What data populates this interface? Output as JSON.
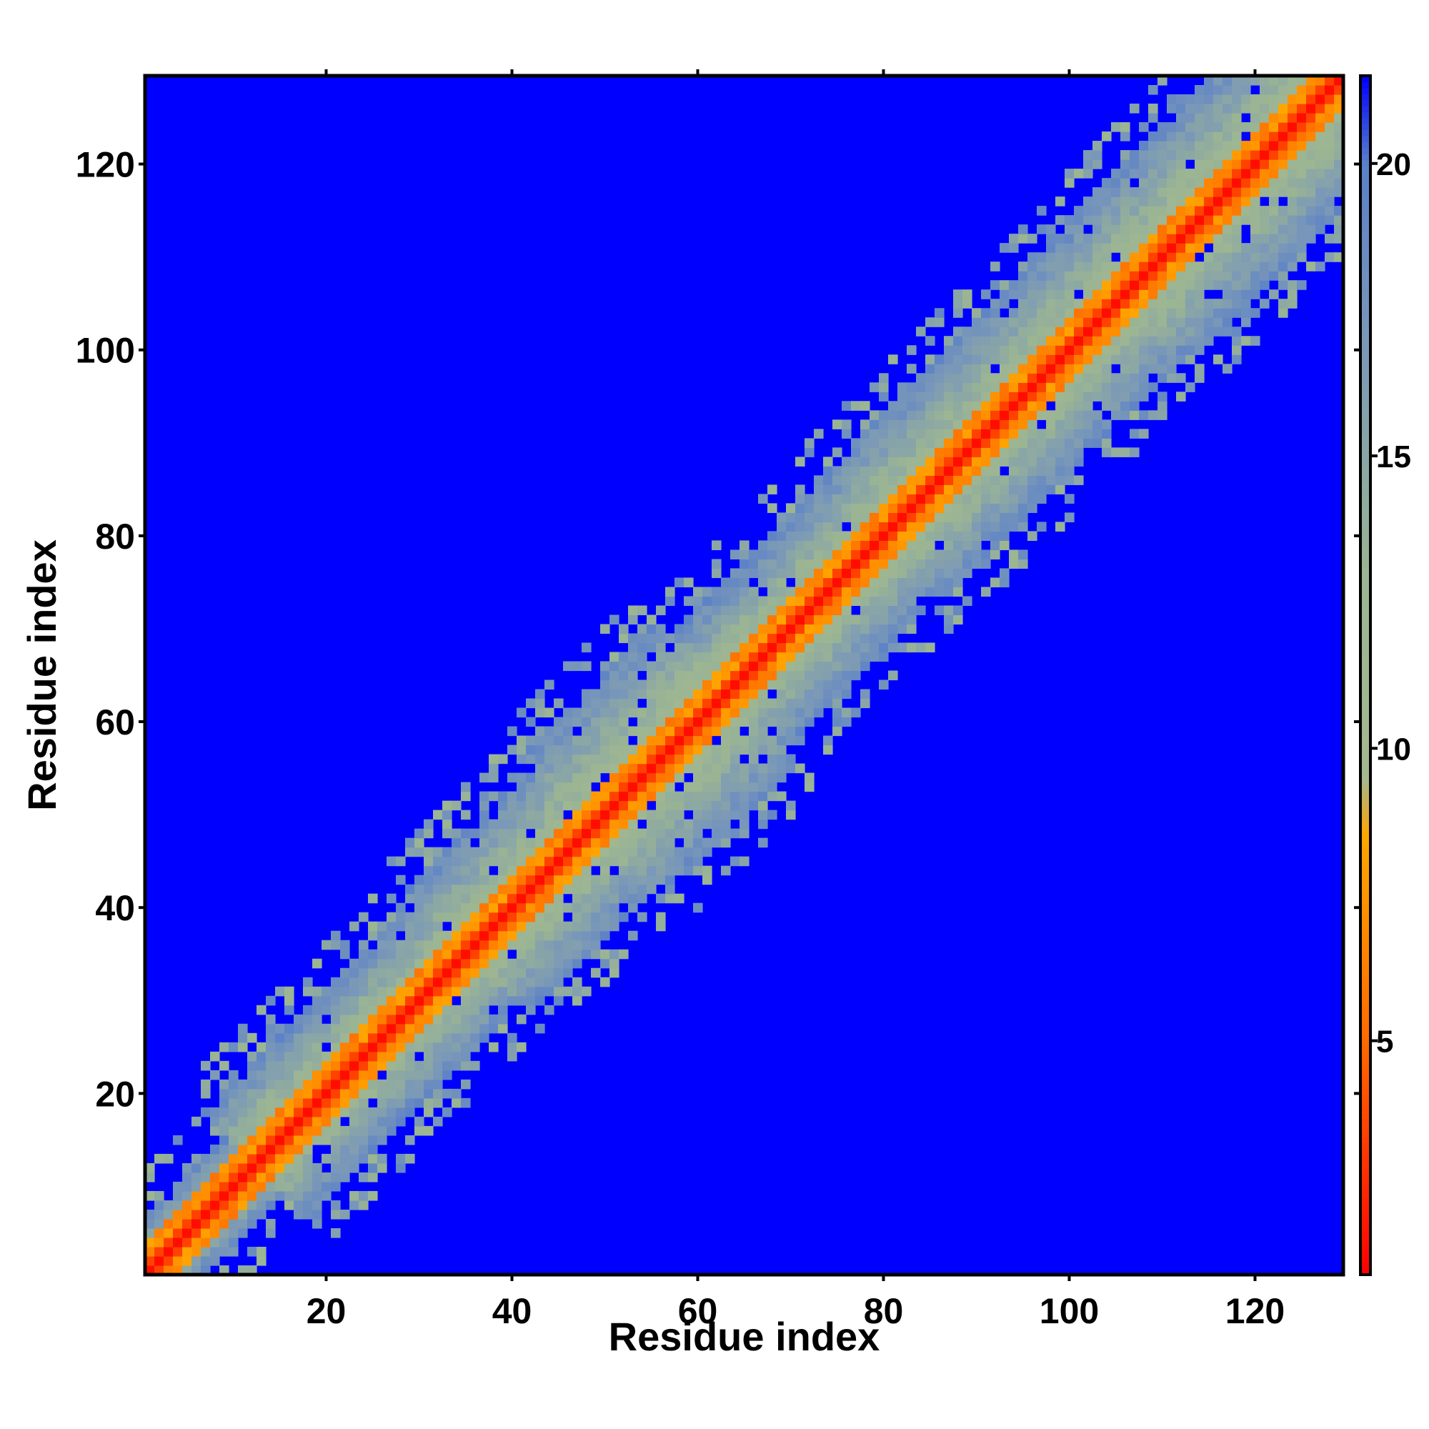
{
  "chart_data": {
    "type": "heatmap",
    "title": "",
    "xlabel": "Residue index",
    "ylabel": "Residue index",
    "x_range": [
      1,
      129
    ],
    "y_range": [
      1,
      129
    ],
    "x_ticks": [
      20,
      40,
      60,
      80,
      100,
      120
    ],
    "y_ticks": [
      20,
      40,
      60,
      80,
      100,
      120
    ],
    "matrix_size": 129,
    "colorbar": {
      "range": [
        1,
        21.5
      ],
      "ticks": [
        5,
        10,
        15,
        20
      ],
      "stops": [
        {
          "value": 1,
          "color": "#ff0000"
        },
        {
          "value": 5,
          "color": "#ff6a00"
        },
        {
          "value": 8.5,
          "color": "#ffa500"
        },
        {
          "value": 9.5,
          "color": "#a5b890"
        },
        {
          "value": 13,
          "color": "#9ab494"
        },
        {
          "value": 17,
          "color": "#7a98b8"
        },
        {
          "value": 20,
          "color": "#5a80c8"
        },
        {
          "value": 21.5,
          "color": "#0000ff"
        }
      ]
    },
    "background_value": 21.5,
    "background_color": "#0000ff",
    "band_segments": [
      {
        "from": 1,
        "to": 12,
        "half_width": 6
      },
      {
        "from": 12,
        "to": 35,
        "half_width": 11
      },
      {
        "from": 35,
        "to": 48,
        "half_width": 13
      },
      {
        "from": 48,
        "to": 63,
        "half_width": 15
      },
      {
        "from": 63,
        "to": 80,
        "half_width": 12
      },
      {
        "from": 80,
        "to": 106,
        "half_width": 13
      },
      {
        "from": 106,
        "to": 129,
        "half_width": 14
      }
    ]
  }
}
